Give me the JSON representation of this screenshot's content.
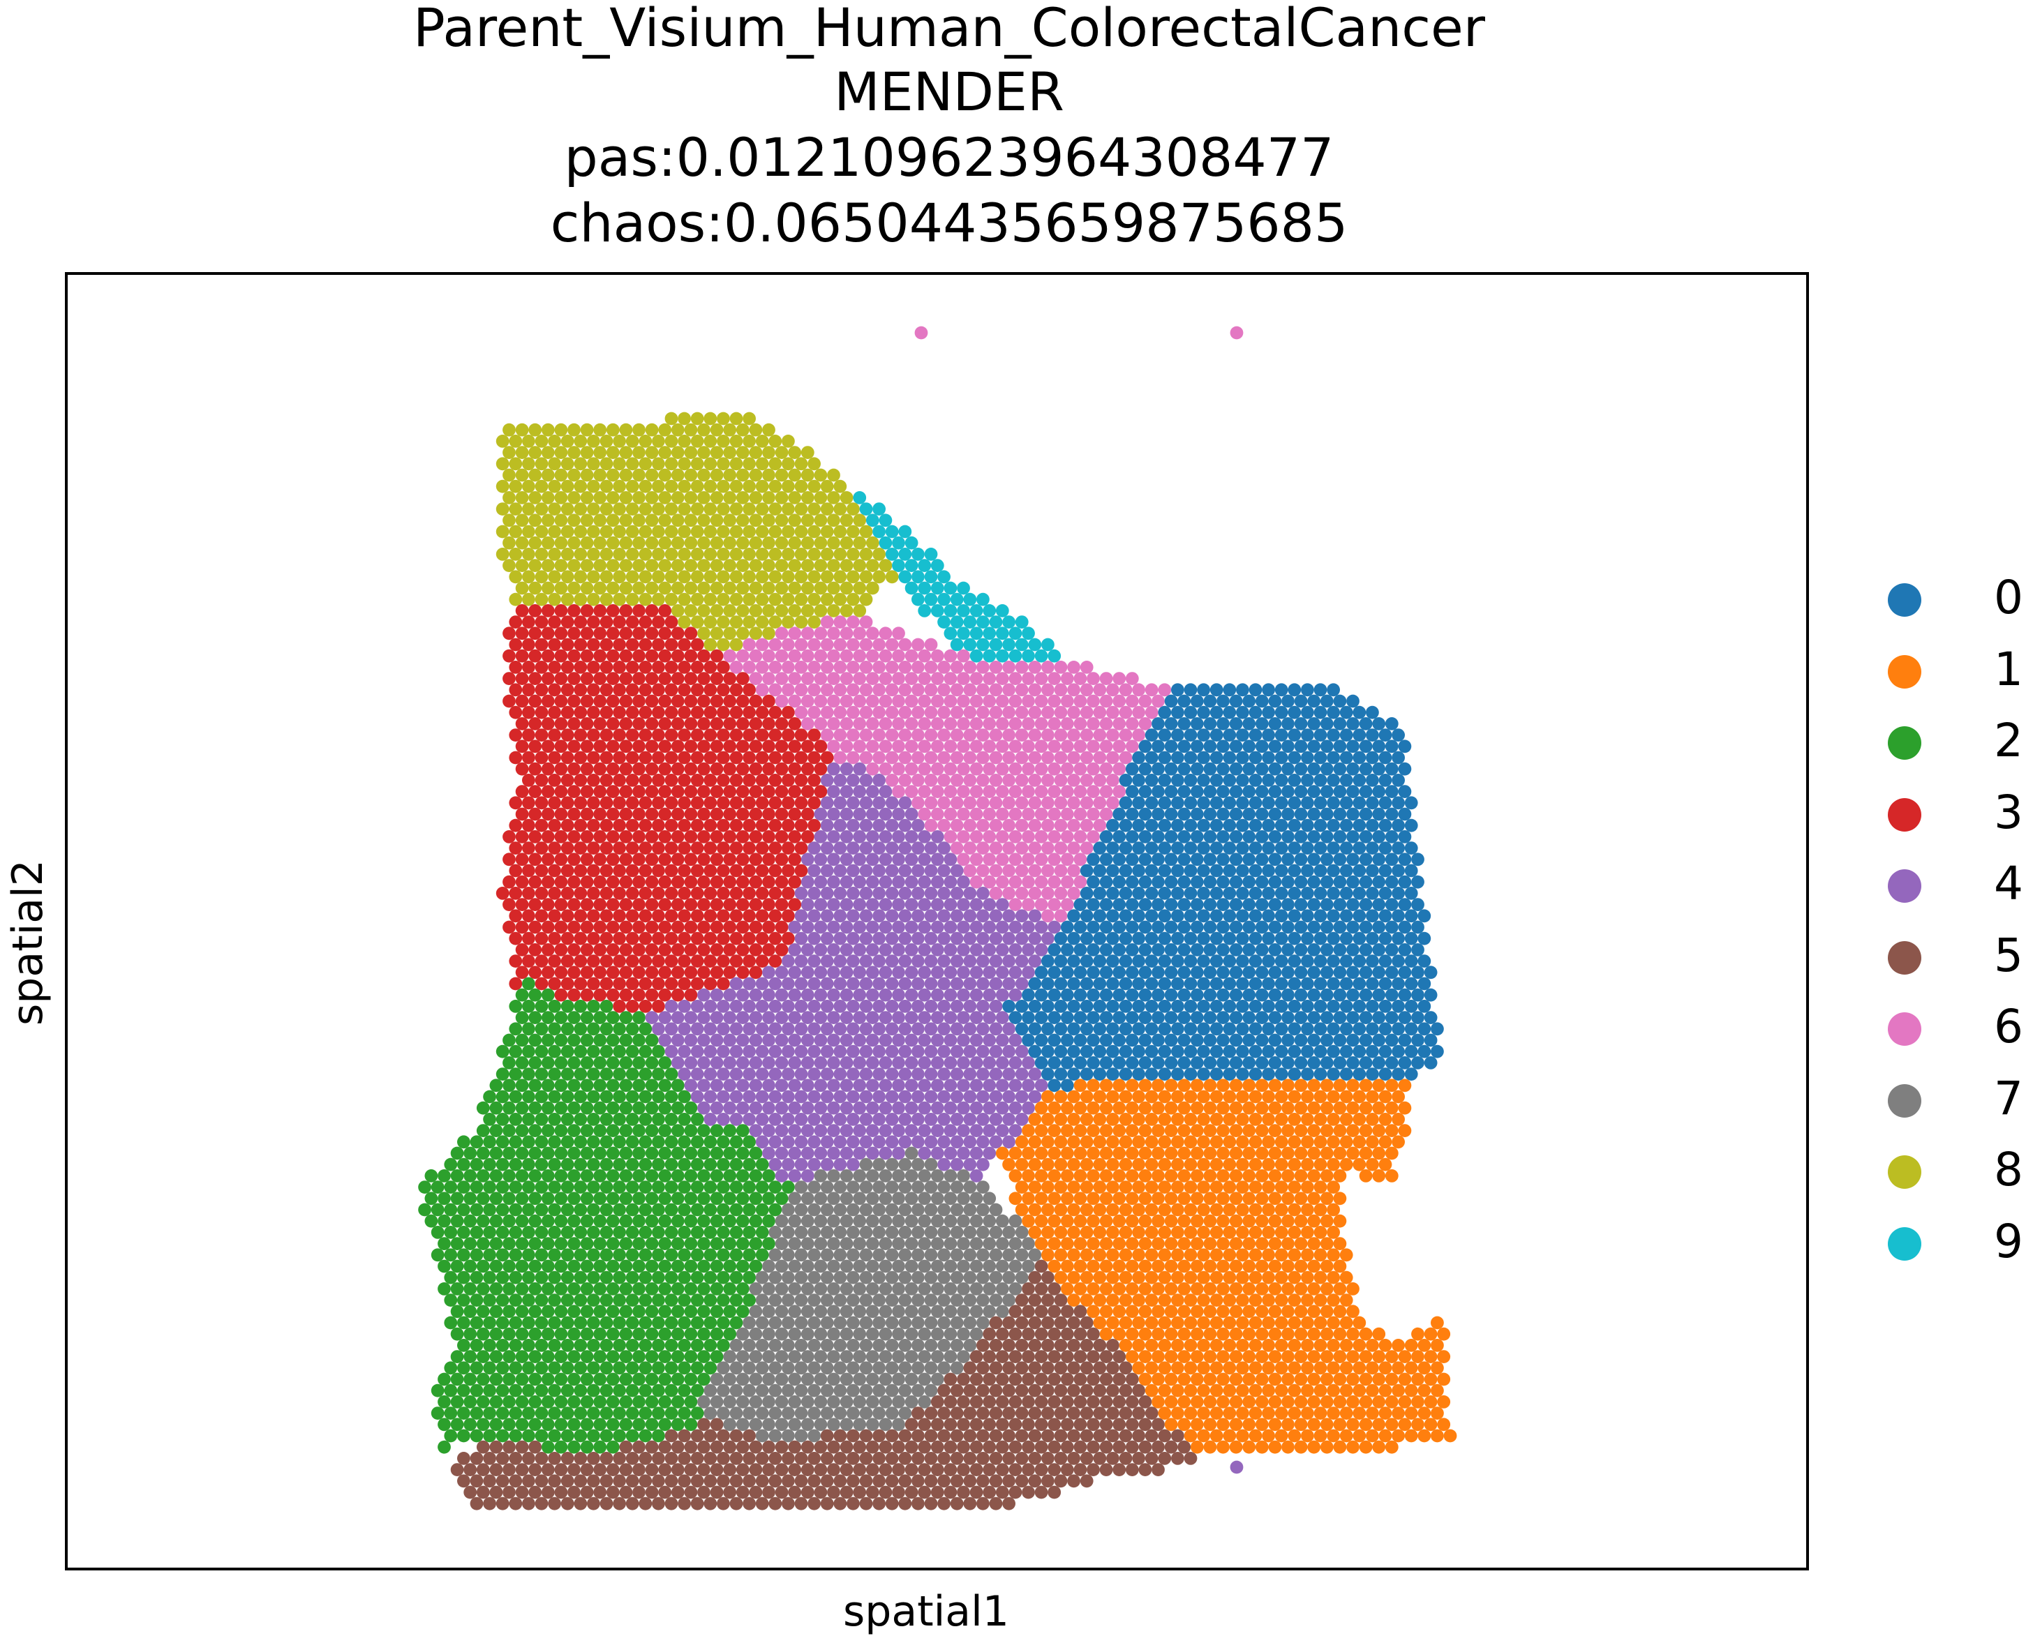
{
  "chart_data": {
    "type": "scatter",
    "title_lines": [
      "Parent_Visium_Human_ColorectalCancer",
      "MENDER",
      "pas:0.012109623964308477",
      "chaos:0.06504435659875685"
    ],
    "xlabel": "spatial1",
    "ylabel": "spatial2",
    "xticks": [],
    "yticks": [],
    "grid": false,
    "legend_position": "right",
    "legend": [
      {
        "label": "0",
        "color": "#1f77b4"
      },
      {
        "label": "1",
        "color": "#ff7f0e"
      },
      {
        "label": "2",
        "color": "#2ca02c"
      },
      {
        "label": "3",
        "color": "#d62728"
      },
      {
        "label": "4",
        "color": "#9467bd"
      },
      {
        "label": "5",
        "color": "#8c564b"
      },
      {
        "label": "6",
        "color": "#e377c2"
      },
      {
        "label": "7",
        "color": "#7f7f7f"
      },
      {
        "label": "8",
        "color": "#bcbd22"
      },
      {
        "label": "9",
        "color": "#17becf"
      }
    ],
    "outlier_points": [
      {
        "x": 1320,
        "y": 477,
        "cluster": "6"
      },
      {
        "x": 1772,
        "y": 477,
        "cluster": "6"
      },
      {
        "x": 1772,
        "y": 2103,
        "cluster": "4"
      }
    ]
  }
}
